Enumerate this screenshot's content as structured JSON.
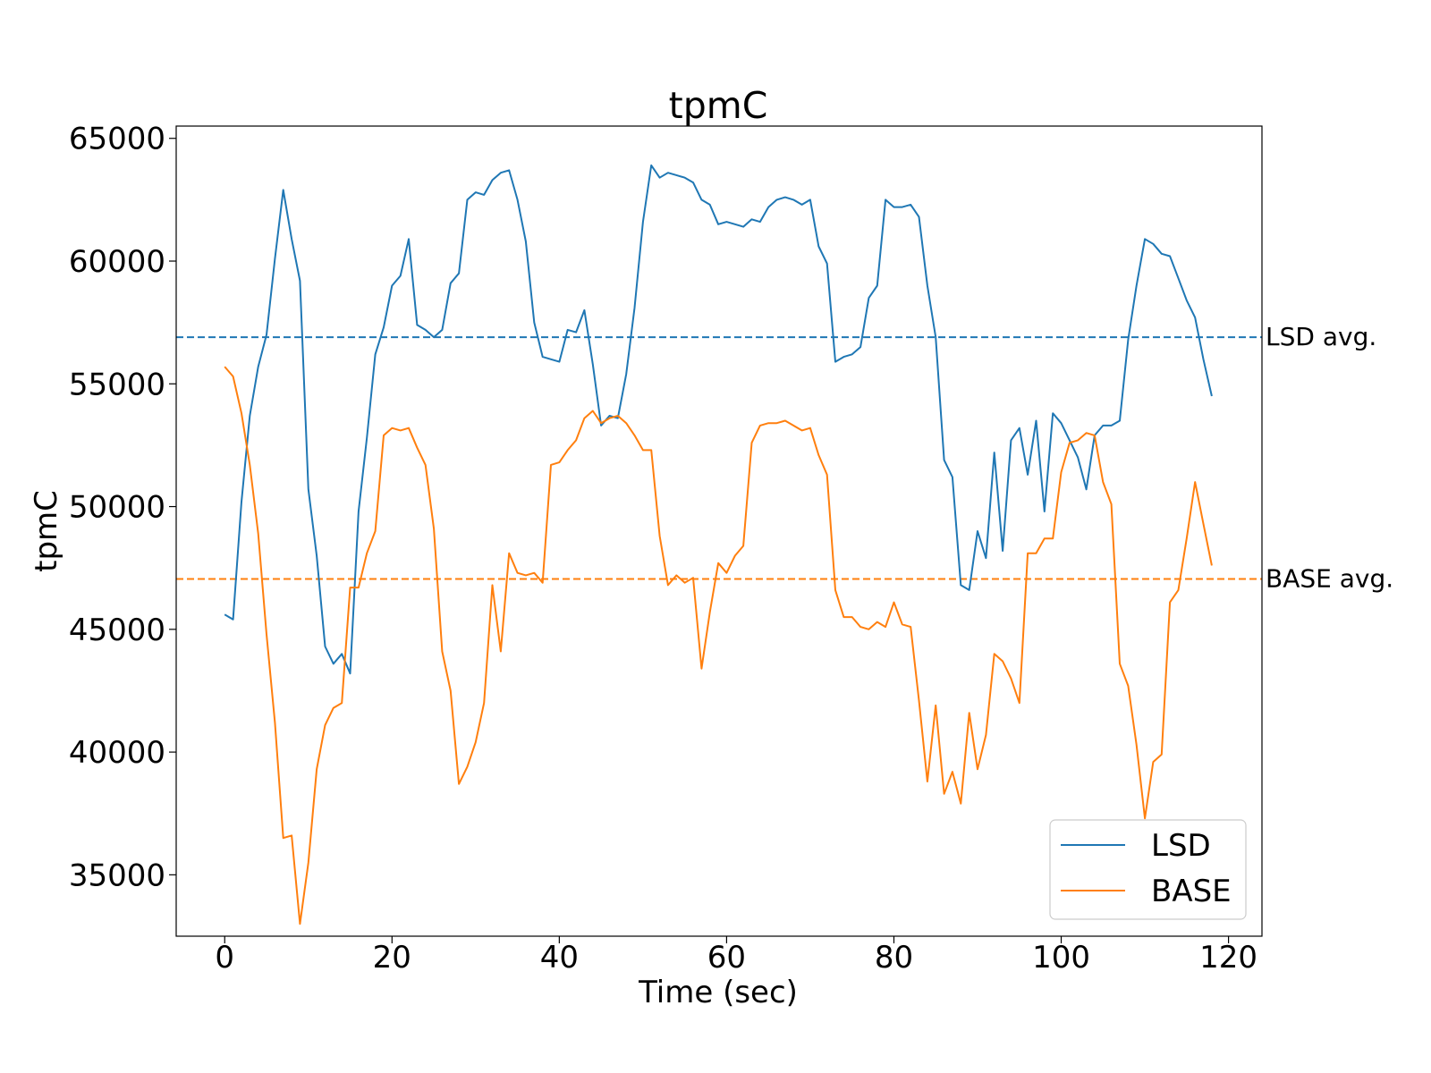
{
  "chart_data": {
    "type": "line",
    "title": "tpmC",
    "xlabel": "Time (sec)",
    "ylabel": "tpmC",
    "xlim": [
      -5.8,
      124
    ],
    "ylim": [
      32500,
      65500
    ],
    "xticks": [
      0,
      20,
      40,
      60,
      80,
      100,
      120
    ],
    "yticks": [
      35000,
      40000,
      45000,
      50000,
      55000,
      60000,
      65000
    ],
    "grid": false,
    "legend_position": "lower-right",
    "colors": {
      "LSD": "#1f77b4",
      "BASE": "#ff7f0e"
    },
    "series": [
      {
        "name": "LSD",
        "x": [
          0,
          1,
          2,
          3,
          4,
          5,
          6,
          7,
          8,
          9,
          10,
          11,
          12,
          13,
          14,
          15,
          16,
          17,
          18,
          19,
          20,
          21,
          22,
          23,
          24,
          25,
          26,
          27,
          28,
          29,
          30,
          31,
          32,
          33,
          34,
          35,
          36,
          37,
          38,
          39,
          40,
          41,
          42,
          43,
          44,
          45,
          46,
          47,
          48,
          49,
          50,
          51,
          52,
          53,
          54,
          55,
          56,
          57,
          58,
          59,
          60,
          61,
          62,
          63,
          64,
          65,
          66,
          67,
          68,
          69,
          70,
          71,
          72,
          73,
          74,
          75,
          76,
          77,
          78,
          79,
          80,
          81,
          82,
          83,
          84,
          85,
          86,
          87,
          88,
          89,
          90,
          91,
          92,
          93,
          94,
          95,
          96,
          97,
          98,
          99,
          100,
          101,
          102,
          103,
          104,
          105,
          106,
          107,
          108,
          109,
          110,
          111,
          112,
          113,
          114,
          115,
          116,
          117,
          118
        ],
        "values": [
          45600,
          45400,
          50200,
          53700,
          55700,
          57000,
          60100,
          62900,
          60900,
          59200,
          50700,
          48000,
          44300,
          43600,
          44000,
          43200,
          49800,
          52800,
          56200,
          57300,
          59000,
          59400,
          60900,
          57400,
          57200,
          56900,
          57200,
          59100,
          59500,
          62500,
          62800,
          62700,
          63300,
          63600,
          63700,
          62500,
          60800,
          57500,
          56100,
          56000,
          55900,
          57200,
          57100,
          58000,
          55800,
          53300,
          53700,
          53600,
          55400,
          58100,
          61600,
          63900,
          63400,
          63600,
          63500,
          63400,
          63200,
          62500,
          62300,
          61500,
          61600,
          61500,
          61400,
          61700,
          61600,
          62200,
          62500,
          62600,
          62500,
          62300,
          62500,
          60600,
          59900,
          55900,
          56100,
          56200,
          56500,
          58500,
          59000,
          62500,
          62200,
          62200,
          62300,
          61800,
          59000,
          56900,
          51900,
          51200,
          46800,
          46600,
          49000,
          47900,
          52200,
          48200,
          52700,
          53200,
          51300,
          53500,
          49800,
          53800,
          53400,
          52700,
          52000,
          50700,
          52900,
          53300,
          53300,
          53500,
          56800,
          59000,
          60900,
          60700,
          60300,
          60200,
          59300,
          58400,
          57700,
          56000,
          54500
        ]
      },
      {
        "name": "BASE",
        "x": [
          0,
          1,
          2,
          3,
          4,
          5,
          6,
          7,
          8,
          9,
          10,
          11,
          12,
          13,
          14,
          15,
          16,
          17,
          18,
          19,
          20,
          21,
          22,
          23,
          24,
          25,
          26,
          27,
          28,
          29,
          30,
          31,
          32,
          33,
          34,
          35,
          36,
          37,
          38,
          39,
          40,
          41,
          42,
          43,
          44,
          45,
          46,
          47,
          48,
          49,
          50,
          51,
          52,
          53,
          54,
          55,
          56,
          57,
          58,
          59,
          60,
          61,
          62,
          63,
          64,
          65,
          66,
          67,
          68,
          69,
          70,
          71,
          72,
          73,
          74,
          75,
          76,
          77,
          78,
          79,
          80,
          81,
          82,
          83,
          84,
          85,
          86,
          87,
          88,
          89,
          90,
          91,
          92,
          93,
          94,
          95,
          96,
          97,
          98,
          99,
          100,
          101,
          102,
          103,
          104,
          105,
          106,
          107,
          108,
          109,
          110,
          111,
          112,
          113,
          114,
          115,
          116,
          117,
          118
        ],
        "values": [
          55700,
          55300,
          53800,
          51700,
          48900,
          44800,
          41200,
          36500,
          36600,
          33000,
          35500,
          39300,
          41100,
          41800,
          42000,
          46700,
          46700,
          48100,
          49000,
          52900,
          53200,
          53100,
          53200,
          52400,
          51700,
          49100,
          44100,
          42500,
          38700,
          39400,
          40400,
          42000,
          46800,
          44100,
          48100,
          47300,
          47200,
          47300,
          46900,
          51700,
          51800,
          52300,
          52700,
          53600,
          53900,
          53400,
          53600,
          53700,
          53400,
          52900,
          52300,
          52300,
          48800,
          46800,
          47200,
          46900,
          47100,
          43400,
          45700,
          47700,
          47300,
          48000,
          48400,
          52600,
          53300,
          53400,
          53400,
          53500,
          53300,
          53100,
          53200,
          52100,
          51300,
          46600,
          45500,
          45500,
          45100,
          45000,
          45300,
          45100,
          46100,
          45200,
          45100,
          42100,
          38800,
          41900,
          38300,
          39200,
          37900,
          41600,
          39300,
          40700,
          44000,
          43700,
          43000,
          42000,
          48100,
          48100,
          48700,
          48700,
          51400,
          52600,
          52700,
          53000,
          52900,
          51000,
          50100,
          43600,
          42700,
          40300,
          37300,
          39600,
          39900,
          46100,
          46600,
          48700,
          51000,
          49300,
          47600
        ]
      }
    ],
    "averages": [
      {
        "name": "LSD",
        "label": "LSD avg.",
        "value": 56900
      },
      {
        "name": "BASE",
        "label": "BASE avg.",
        "value": 47050
      }
    ]
  }
}
